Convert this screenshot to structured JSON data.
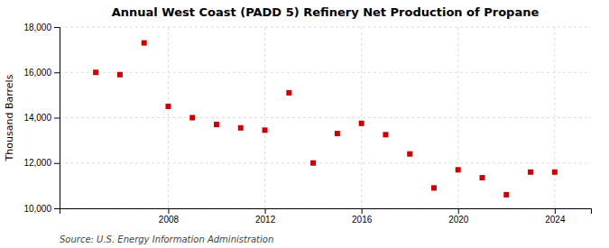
{
  "chart_data": {
    "type": "scatter",
    "title": "Annual West Coast (PADD 5) Refinery Net Production of Propane",
    "ylabel": "Thousand Barrels",
    "source": "Source: U.S. Energy Information Administration",
    "x": [
      2005,
      2006,
      2007,
      2008,
      2009,
      2010,
      2011,
      2012,
      2013,
      2014,
      2015,
      2016,
      2017,
      2018,
      2019,
      2020,
      2021,
      2022,
      2023,
      2024
    ],
    "values": [
      16000,
      15900,
      17300,
      14500,
      14000,
      13700,
      13550,
      13450,
      15100,
      12000,
      13300,
      13750,
      13250,
      12400,
      10900,
      11700,
      11350,
      10600,
      11600,
      11600
    ],
    "color": "#cc0000",
    "marker": "square",
    "xlim": [
      2003.5,
      2025.5
    ],
    "xticks": [
      2008,
      2012,
      2016,
      2020,
      2024
    ],
    "ylim": [
      10000,
      18000
    ],
    "yticks": [
      {
        "value": 10000,
        "label": "10,000"
      },
      {
        "value": 12000,
        "label": "12,000"
      },
      {
        "value": 14000,
        "label": "14,000"
      },
      {
        "value": 16000,
        "label": "16,000"
      },
      {
        "value": 18000,
        "label": "18,000"
      }
    ],
    "grid": true
  }
}
